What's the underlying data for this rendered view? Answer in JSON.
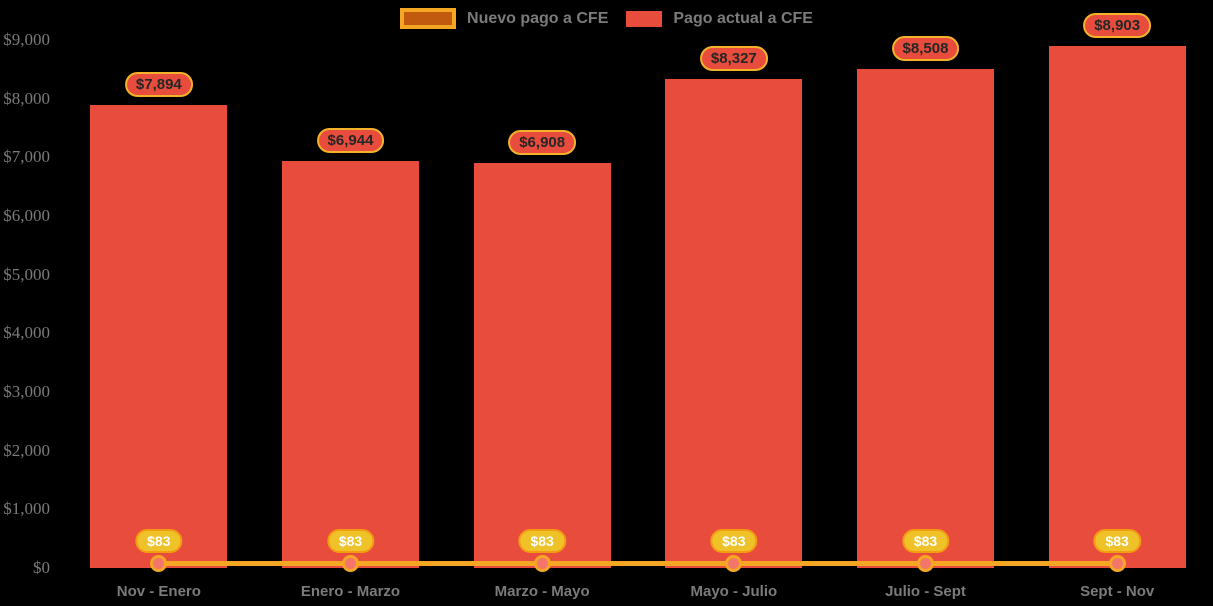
{
  "colors": {
    "background": "#000000",
    "bar": "#e74c3c",
    "line": "#f5a623",
    "marker_fill": "#f4766b",
    "bar_label_bg": "#e74c3c",
    "bar_label_border": "#f3b229",
    "bar_label_text": "#262626",
    "line_label_bg": "#eec228",
    "line_label_border": "#f39c12",
    "line_label_text": "#ffffff",
    "legend_nuevo_fill": "#c1590e",
    "axis_text": "#7b7b7b"
  },
  "chart_data": {
    "type": "bar",
    "title": "",
    "categories": [
      "Nov - Enero",
      "Enero - Marzo",
      "Marzo - Mayo",
      "Mayo - Julio",
      "Julio - Sept",
      "Sept - Nov"
    ],
    "series": [
      {
        "name": "Nuevo pago a CFE",
        "type": "line",
        "color": "#f5a623",
        "values": [
          83,
          83,
          83,
          83,
          83,
          83
        ],
        "labels": [
          "$83",
          "$83",
          "$83",
          "$83",
          "$83",
          "$83"
        ]
      },
      {
        "name": "Pago actual a CFE",
        "type": "bar",
        "color": "#e74c3c",
        "values": [
          7894,
          6944,
          6908,
          8327,
          8508,
          8903
        ],
        "labels": [
          "$7,894",
          "$6,944",
          "$6,908",
          "$8,327",
          "$8,508",
          "$8,903"
        ]
      }
    ],
    "y_axis": {
      "min": 0,
      "max": 9000,
      "tick_step": 1000,
      "tick_labels": [
        "$0",
        "$1,000",
        "$2,000",
        "$3,000",
        "$4,000",
        "$5,000",
        "$6,000",
        "$7,000",
        "$8,000",
        "$9,000"
      ]
    },
    "legend_position": "top",
    "grid": false
  }
}
